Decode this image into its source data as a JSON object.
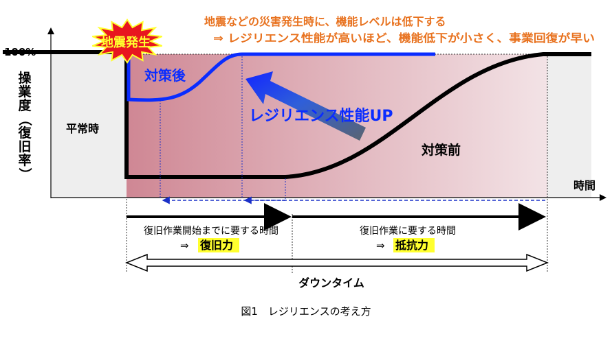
{
  "burst_label": "地震発生",
  "annotation_line1": "地震などの災害発生時に、機能レベルは低下する",
  "annotation_line2": "⇒ レジリエンス性能が高いほど、機能低下が小さく、事業回復が早い",
  "y_top_label": "100%",
  "y_axis_label_chars": [
    "操",
    "業",
    "度",
    "（",
    "復",
    "旧",
    "率",
    "）"
  ],
  "x_axis_label": "時間",
  "normal_label": "平常時",
  "after_label": "対策後",
  "before_label": "対策前",
  "arrow_label": "レジリエンス性能UP",
  "phase1_line1": "復旧作業開始までに要する時間",
  "phase1_arrow": "⇒",
  "phase1_term": "復旧力",
  "phase2_line1": "復旧作業に要する時間",
  "phase2_arrow": "⇒",
  "phase2_term": "抵抗力",
  "downtime_label": "ダウンタイム",
  "caption": "図1　レジリエンスの考え方",
  "colors": {
    "annotation": "#e8721f",
    "after_curve": "#0a2cff",
    "burst_fill": "#e8161f",
    "highlight": "#ffff2e",
    "pink_bg": "#cf8794",
    "gray_bg": "#eeeeee"
  }
}
